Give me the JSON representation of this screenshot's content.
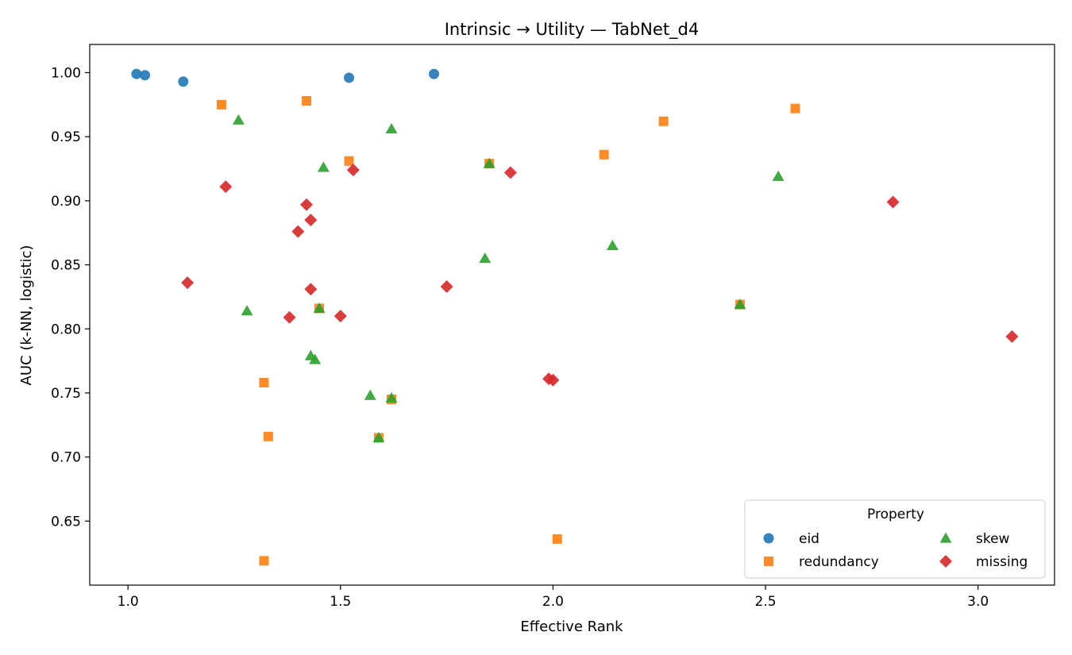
{
  "chart_data": {
    "type": "scatter",
    "title": "Intrinsic → Utility — TabNet_d4",
    "xlabel": "Effective Rank",
    "ylabel": "AUC (k-NN, logistic)",
    "xlim": [
      0.91,
      3.18
    ],
    "ylim": [
      0.6,
      1.022
    ],
    "xticks": [
      1.0,
      1.5,
      2.0,
      2.5,
      3.0
    ],
    "xtick_labels": [
      "1.0",
      "1.5",
      "2.0",
      "2.5",
      "3.0"
    ],
    "yticks": [
      0.65,
      0.7,
      0.75,
      0.8,
      0.85,
      0.9,
      0.95,
      1.0
    ],
    "ytick_labels": [
      "0.65",
      "0.70",
      "0.75",
      "0.80",
      "0.85",
      "0.90",
      "0.95",
      "1.00"
    ],
    "grid": false,
    "legend": {
      "title": "Property",
      "placement": "lower-right",
      "columns": 2
    },
    "series": [
      {
        "name": "eid",
        "marker": "circle",
        "color": "#1f77b4",
        "points": [
          [
            1.02,
            0.999
          ],
          [
            1.04,
            0.998
          ],
          [
            1.13,
            0.993
          ],
          [
            1.52,
            0.996
          ],
          [
            1.72,
            0.999
          ]
        ]
      },
      {
        "name": "redundancy",
        "marker": "square",
        "color": "#ff7f0e",
        "points": [
          [
            1.22,
            0.975
          ],
          [
            1.42,
            0.978
          ],
          [
            1.52,
            0.931
          ],
          [
            1.85,
            0.929
          ],
          [
            2.12,
            0.936
          ],
          [
            2.26,
            0.962
          ],
          [
            2.57,
            0.972
          ],
          [
            1.32,
            0.758
          ],
          [
            1.33,
            0.716
          ],
          [
            1.45,
            0.816
          ],
          [
            1.59,
            0.715
          ],
          [
            1.62,
            0.745
          ],
          [
            2.44,
            0.819
          ],
          [
            2.01,
            0.636
          ],
          [
            1.32,
            0.619
          ]
        ]
      },
      {
        "name": "skew",
        "marker": "triangle",
        "color": "#2ca02c",
        "points": [
          [
            1.26,
            0.963
          ],
          [
            1.62,
            0.956
          ],
          [
            1.46,
            0.926
          ],
          [
            1.85,
            0.929
          ],
          [
            2.53,
            0.919
          ],
          [
            1.28,
            0.814
          ],
          [
            1.45,
            0.816
          ],
          [
            1.84,
            0.855
          ],
          [
            2.14,
            0.865
          ],
          [
            1.43,
            0.779
          ],
          [
            1.44,
            0.776
          ],
          [
            1.57,
            0.748
          ],
          [
            1.62,
            0.746
          ],
          [
            1.59,
            0.715
          ],
          [
            2.44,
            0.819
          ]
        ]
      },
      {
        "name": "missing",
        "marker": "diamond",
        "color": "#d62728",
        "points": [
          [
            1.23,
            0.911
          ],
          [
            1.53,
            0.924
          ],
          [
            1.9,
            0.922
          ],
          [
            1.42,
            0.897
          ],
          [
            1.43,
            0.885
          ],
          [
            1.4,
            0.876
          ],
          [
            2.8,
            0.899
          ],
          [
            1.14,
            0.836
          ],
          [
            1.43,
            0.831
          ],
          [
            1.75,
            0.833
          ],
          [
            1.38,
            0.809
          ],
          [
            1.5,
            0.81
          ],
          [
            1.99,
            0.761
          ],
          [
            2.0,
            0.76
          ],
          [
            3.08,
            0.794
          ]
        ]
      }
    ]
  }
}
